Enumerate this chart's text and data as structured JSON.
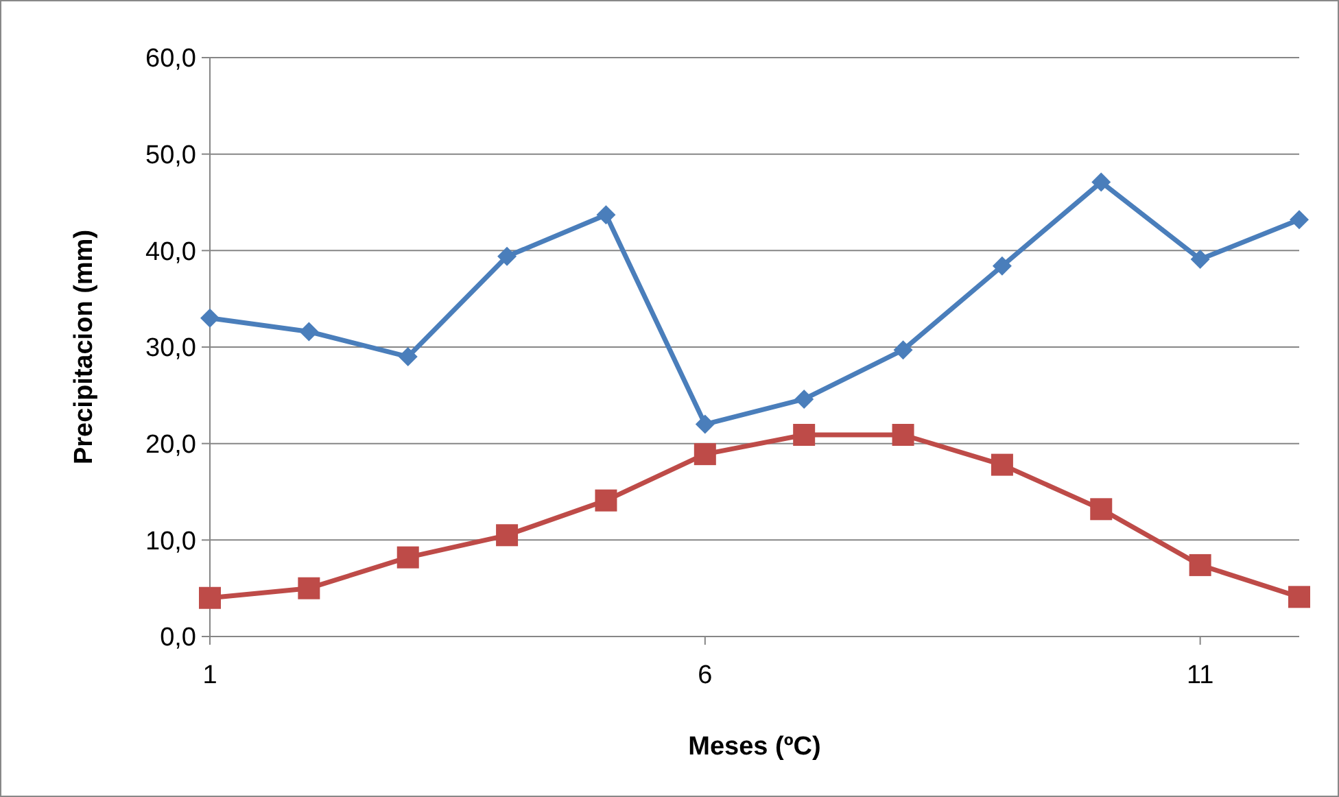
{
  "chart_data": {
    "type": "line",
    "xlabel": "Meses (ºC)",
    "ylabel": "Precipitacion (mm)",
    "x": [
      1,
      2,
      3,
      4,
      5,
      6,
      7,
      8,
      9,
      10,
      11,
      12
    ],
    "xlim": [
      1,
      12
    ],
    "xticks": [
      1,
      6,
      11
    ],
    "ylim": [
      0,
      60
    ],
    "yticks": [
      {
        "value": 0,
        "label": "0,0"
      },
      {
        "value": 10,
        "label": "10,0"
      },
      {
        "value": 20,
        "label": "20,0"
      },
      {
        "value": 30,
        "label": "30,0"
      },
      {
        "value": 40,
        "label": "40,0"
      },
      {
        "value": 50,
        "label": "50,0"
      },
      {
        "value": 60,
        "label": "60,0"
      }
    ],
    "grid": "y",
    "line_style": "solid",
    "series": [
      {
        "color": "#4a7ebb",
        "marker": "diamond",
        "values": [
          33.0,
          31.6,
          29.0,
          39.4,
          43.7,
          22.0,
          24.6,
          29.7,
          38.4,
          47.1,
          39.1,
          43.2
        ]
      },
      {
        "color": "#be4b48",
        "marker": "square",
        "values": [
          4.0,
          5.0,
          8.2,
          10.5,
          14.1,
          18.9,
          20.9,
          20.9,
          17.8,
          13.2,
          7.4,
          4.1
        ]
      }
    ]
  }
}
